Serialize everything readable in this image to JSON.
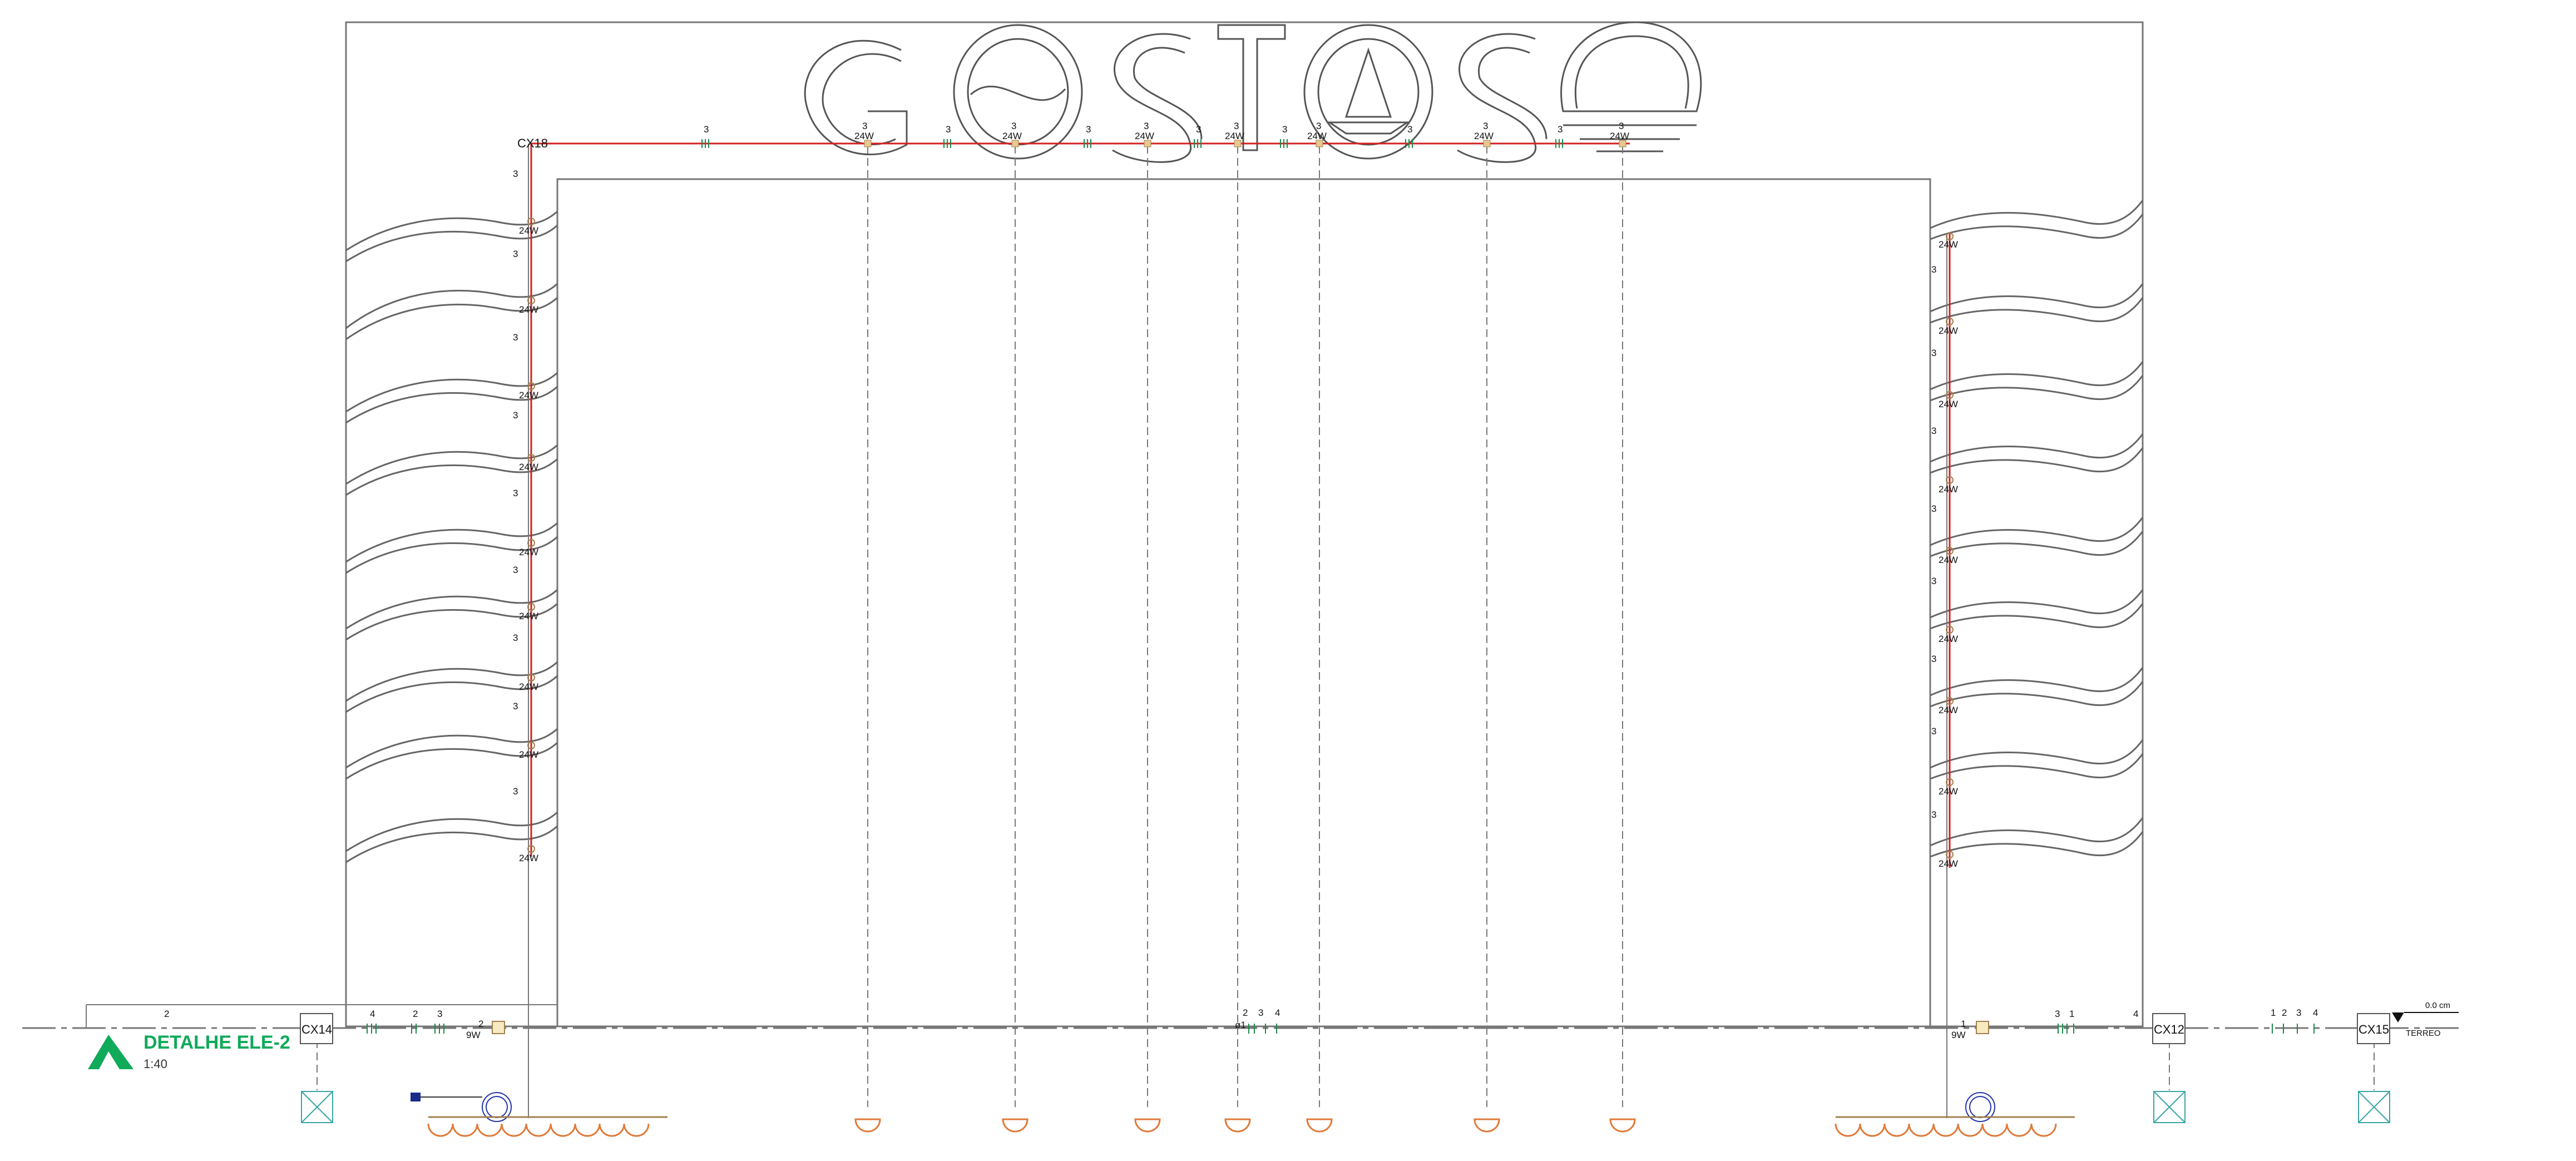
{
  "drawing": {
    "title": "DETALHE ELE-2",
    "scale": "1:40",
    "level_value": "0.0 cm",
    "level_name": "TERREO",
    "colors": {
      "accent": "#0faa5a",
      "circuit": "#d22020",
      "fixture": "#e07a3a",
      "ring": "#2233aa",
      "box_x": "#3aa5a5"
    }
  },
  "boxes": [
    "CX14",
    "CX12",
    "CX15",
    "CX18"
  ],
  "labels": {
    "power_24w": "24W",
    "power_9w": "9W",
    "n3": "3",
    "n2": "2",
    "n4": "4",
    "n1": "1",
    "phi": "ø1"
  },
  "bottom_counts": {
    "left": [
      "4",
      "2",
      "3",
      "2"
    ],
    "center": [
      "2",
      "3",
      "4"
    ],
    "right": [
      "3",
      "1",
      "4",
      "1"
    ],
    "far_right": [
      "1",
      "2",
      "3",
      "4"
    ]
  }
}
